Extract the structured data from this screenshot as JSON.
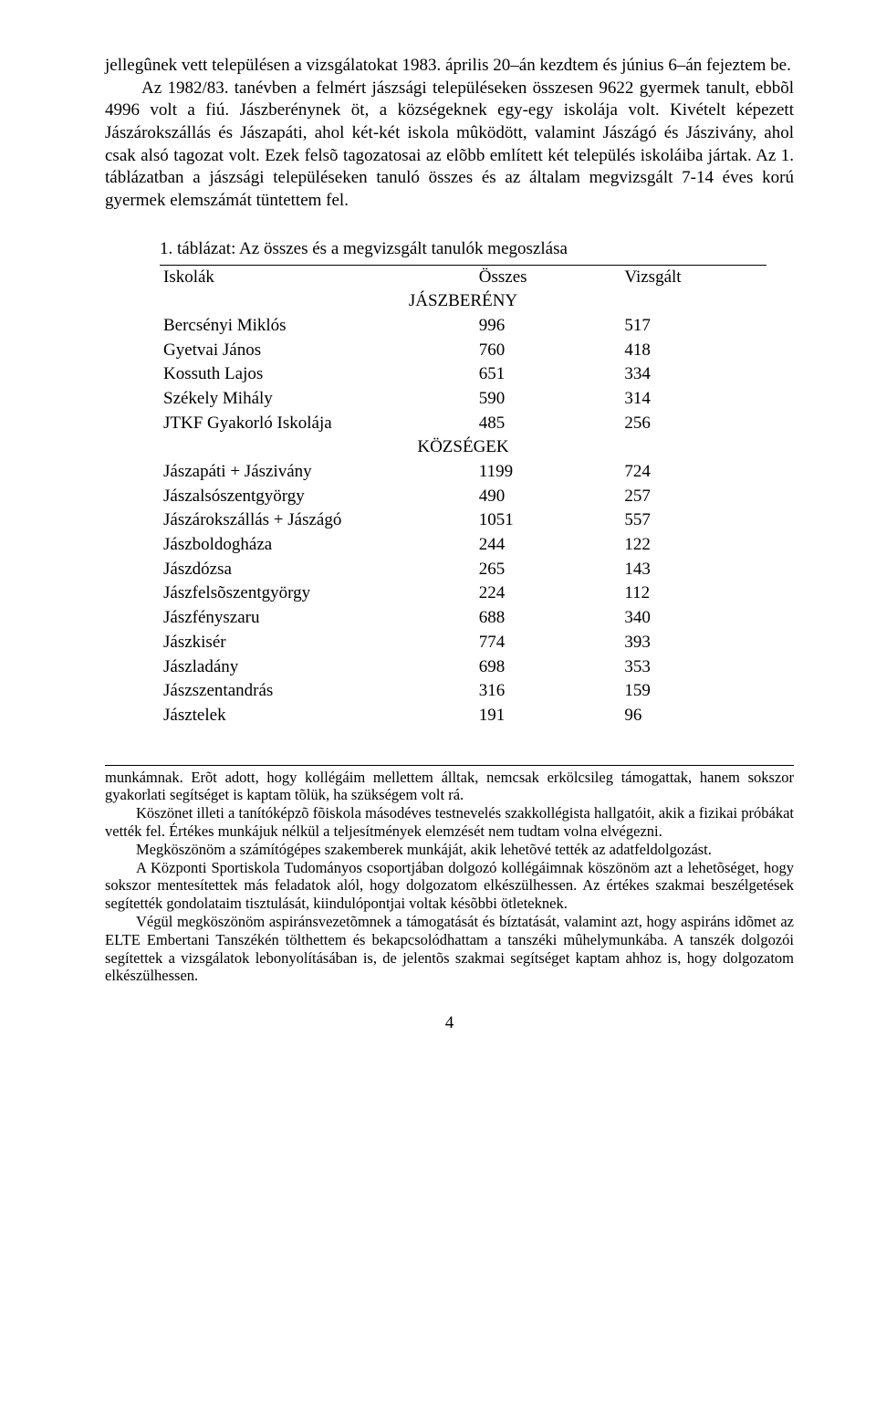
{
  "body_text": {
    "p1": "jellegûnek vett településen a vizsgálatokat 1983. április 20–án kezdtem és június 6–án fejeztem be.",
    "p2": "Az 1982/83. tanévben a felmért jászsági településeken összesen 9622 gyermek tanult, ebbõl 4996 volt a fiú. Jászberénynek öt, a községeknek egy-egy iskolája volt. Kivételt képezett Jászárokszállás és Jászapáti, ahol két-két iskola mûködött, valamint Jászágó és Jászivány, ahol csak alsó tagozat volt. Ezek felsõ tagozatosai az elõbb említett két település iskoláiba jártak. Az 1. táblázatban a jászsági településeken tanuló összes és az általam megvizsgált 7-14 éves korú gyermek elemszámát tüntettem fel."
  },
  "table": {
    "caption": "1. táblázat: Az összes és a megvizsgált tanulók megoszlása",
    "col_headers": [
      "Iskolák",
      "Összes",
      "Vizsgált"
    ],
    "section1": "JÁSZBERÉNY",
    "rows1": [
      [
        "Bercsényi Miklós",
        "996",
        "517"
      ],
      [
        "Gyetvai János",
        "760",
        "418"
      ],
      [
        "Kossuth Lajos",
        "651",
        "334"
      ],
      [
        "Székely Mihály",
        "590",
        "314"
      ],
      [
        "JTKF Gyakorló Iskolája",
        "485",
        "256"
      ]
    ],
    "section2": "KÖZSÉGEK",
    "rows2": [
      [
        "Jászapáti + Jászivány",
        "1199",
        "724"
      ],
      [
        "Jászalsószentgyörgy",
        "490",
        "257"
      ],
      [
        "Jászárokszállás + Jászágó",
        "1051",
        "557"
      ],
      [
        "Jászboldogháza",
        "244",
        "122"
      ],
      [
        "Jászdózsa",
        "265",
        "143"
      ],
      [
        "Jászfelsõszentgyörgy",
        "224",
        "112"
      ],
      [
        "Jászfényszaru",
        "688",
        "340"
      ],
      [
        "Jászkisér",
        "774",
        "393"
      ],
      [
        "Jászladány",
        "698",
        "353"
      ],
      [
        "Jászszentandrás",
        "316",
        "159"
      ],
      [
        "Jásztelek",
        "191",
        "96"
      ]
    ]
  },
  "footnotes": {
    "f1": "munkámnak. Erõt adott, hogy kollégáim mellettem álltak, nemcsak erkölcsileg támogattak, hanem sokszor gyakorlati segítséget is kaptam tõlük, ha szükségem volt rá.",
    "f2": "Köszönet illeti a tanítóképzõ fõiskola másodéves testnevelés szakkollégista hallgatóit, akik a fizikai próbákat vették fel. Értékes munkájuk nélkül a teljesítmények elemzését nem tudtam volna elvégezni.",
    "f3": "Megköszönöm a számítógépes szakemberek munkáját, akik lehetõvé tették az adatfeldolgozást.",
    "f4": "A Központi Sportiskola Tudományos csoportjában dolgozó kollégáimnak köszönöm azt a lehetõséget, hogy sokszor mentesítettek más feladatok alól, hogy dolgozatom elkészülhessen. Az értékes szakmai beszélgetések segítették gondolataim tisztulását, kiindulópontjai voltak késõbbi ötleteknek.",
    "f5": "Végül megköszönöm aspiránsvezetõmnek a támogatását és bíztatását, valamint azt, hogy aspiráns idõmet az ELTE Embertani Tanszékén tölthettem és bekapcsolódhattam a tanszéki mûhelymunkába. A tanszék dolgozói segítettek a vizsgálatok lebonyolításában is, de jelentõs szakmai segítséget kaptam ahhoz is, hogy dolgozatom elkészülhessen."
  },
  "page_number": "4",
  "style": {
    "font_family": "Times New Roman",
    "body_fontsize_pt": 14,
    "footnote_fontsize_pt": 12,
    "text_color": "#000000",
    "background_color": "#ffffff",
    "rule_color": "#000000"
  }
}
